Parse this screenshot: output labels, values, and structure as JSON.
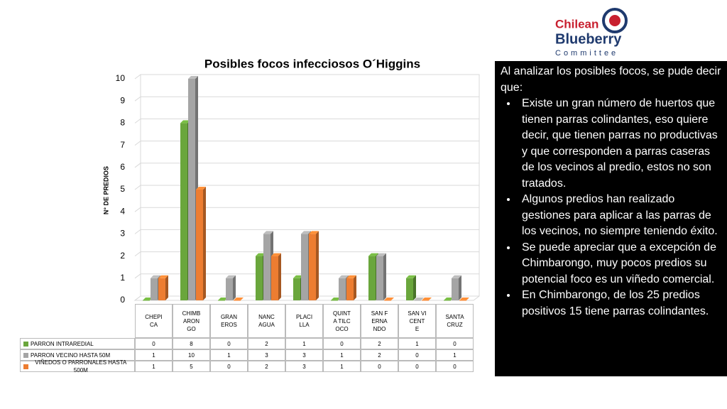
{
  "chart_data": {
    "type": "bar",
    "title": "Posibles focos infecciosos  O´Higgins",
    "y_label": "N° DE PREDIOS",
    "categories": [
      "CHEPICA",
      "CHIMBARONGO",
      "GRANEROS",
      "NANCAGUA",
      "PLACILLA",
      "QUINTA TILCOCO",
      "SAN FERNANDO",
      "SAN VICENTE",
      "SANTA CRUZ"
    ],
    "series": [
      {
        "name": "PARRON INTRAREDIAL",
        "color": "#6aa63c",
        "values": [
          0,
          8,
          0,
          2,
          1,
          0,
          2,
          1,
          0
        ]
      },
      {
        "name": "PARRON VECINO HASTA 50M",
        "color": "#a5a5a5",
        "values": [
          1,
          10,
          1,
          3,
          3,
          1,
          2,
          0,
          1
        ]
      },
      {
        "name": "VIÑEDOS O PARRONALES HASTA 500M",
        "color": "#ed7d31",
        "values": [
          1,
          5,
          0,
          2,
          3,
          1,
          0,
          0,
          0
        ]
      }
    ],
    "ylim": [
      0,
      10
    ],
    "yticks": [
      0,
      1,
      2,
      3,
      4,
      5,
      6,
      7,
      8,
      9,
      10
    ],
    "grid": true,
    "legend": "table"
  },
  "logo": {
    "line1": "Chilean",
    "line2": "Blueberry",
    "line3": "Committee"
  },
  "text_panel": {
    "intro": "Al analizar los posibles focos, se pude decir que:",
    "bullets": [
      "Existe un gran número de huertos que tienen parras colindantes, eso quiere decir, que tienen parras no productivas y que corresponden a parras caseras de los vecinos al predio, estos no son tratados.",
      "Algunos predios han realizado gestiones para aplicar a las parras de los vecinos, no siempre teniendo éxito.",
      "Se puede apreciar que a excepción de Chimbarongo, muy pocos predios su potencial foco es un  viñedo comercial.",
      "En Chimbarongo, de los 25 predios positivos 15 tiene parras colindantes."
    ]
  }
}
